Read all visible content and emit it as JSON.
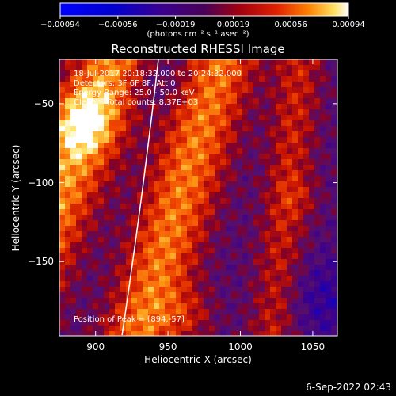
{
  "chart_data": {
    "type": "heatmap",
    "title": "Reconstructed RHESSI Image",
    "xlabel": "Heliocentric X (arcsec)",
    "ylabel": "Heliocentric Y (arcsec)",
    "xlim": [
      875,
      1067
    ],
    "ylim": [
      -197,
      -22
    ],
    "xticks": [
      900,
      950,
      1000,
      1050
    ],
    "xtick_labels": [
      "900",
      "950",
      "1000",
      "1050"
    ],
    "yticks": [
      -50,
      -100,
      -150
    ],
    "ytick_labels": [
      "−50",
      "−100",
      "−150"
    ],
    "colorbar": {
      "min": -0.00094,
      "max": 0.00094,
      "tick_labels": [
        "−0.00094",
        "−0.00056",
        "−0.00019",
        "0.00019",
        "0.00056",
        "0.00094"
      ],
      "unit_label": "(photons cm⁻² s⁻¹ asec⁻²)"
    },
    "info_lines": [
      "18-Jul-2017 20:18:32.000 to 20:24:32.000",
      "Detectors: 3F 6F 8F, Att 0",
      "Energy Range: 25.0 - 50.0 keV",
      "Clean    Total counts: 8.37E+03"
    ],
    "peak_label": "Position of Peak = [894,-57]",
    "peak_position": [
      894,
      -57
    ],
    "grid": false
  },
  "footer": {
    "timestamp": "6-Sep-2022 02:43"
  },
  "colors": {
    "background": "#000000",
    "text": "#ffffff",
    "limb": "#ffffff"
  }
}
